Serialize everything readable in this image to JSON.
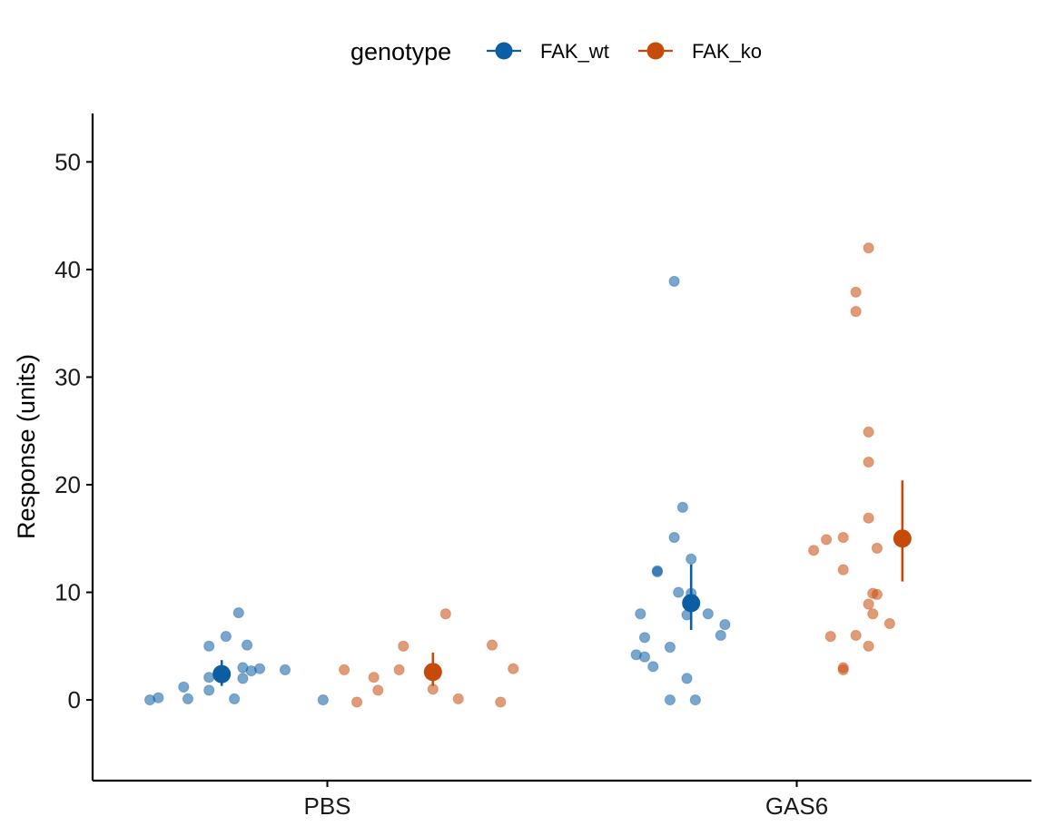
{
  "chart_data": {
    "type": "scatter",
    "title": "",
    "xlabel": "",
    "ylabel": "Response (units)",
    "ylim": [
      -7.5,
      54.5
    ],
    "yticks": [
      0,
      10,
      20,
      30,
      40,
      50
    ],
    "categories": [
      "PBS",
      "GAS6"
    ],
    "grid": false,
    "legend": {
      "title": "genotype",
      "placement": "top",
      "entries": [
        "FAK_wt",
        "FAK_ko"
      ]
    },
    "series": [
      {
        "name": "FAK_wt",
        "color": "#0B5DA4",
        "summary": [
          {
            "category": "PBS",
            "mean": 2.4,
            "lower": 1.3,
            "upper": 3.7
          },
          {
            "category": "GAS6",
            "mean": 9.0,
            "lower": 6.5,
            "upper": 12.6
          }
        ],
        "points": [
          {
            "category": "PBS",
            "jitter": -0.42,
            "y": 0.0
          },
          {
            "category": "PBS",
            "jitter": -0.4,
            "y": 0.2
          },
          {
            "category": "PBS",
            "jitter": -0.34,
            "y": 1.2
          },
          {
            "category": "PBS",
            "jitter": -0.33,
            "y": 0.1
          },
          {
            "category": "PBS",
            "jitter": -0.28,
            "y": 5.0
          },
          {
            "category": "PBS",
            "jitter": -0.28,
            "y": 2.1
          },
          {
            "category": "PBS",
            "jitter": -0.28,
            "y": 0.9
          },
          {
            "category": "PBS",
            "jitter": -0.24,
            "y": 5.9
          },
          {
            "category": "PBS",
            "jitter": -0.22,
            "y": 0.1
          },
          {
            "category": "PBS",
            "jitter": -0.21,
            "y": 8.1
          },
          {
            "category": "PBS",
            "jitter": -0.2,
            "y": 3.0
          },
          {
            "category": "PBS",
            "jitter": -0.19,
            "y": 5.1
          },
          {
            "category": "PBS",
            "jitter": -0.2,
            "y": 2.0
          },
          {
            "category": "PBS",
            "jitter": -0.18,
            "y": 2.7
          },
          {
            "category": "PBS",
            "jitter": -0.16,
            "y": 2.9
          },
          {
            "category": "PBS",
            "jitter": -0.1,
            "y": 2.8
          },
          {
            "category": "PBS",
            "jitter": -0.01,
            "y": 0.0
          },
          {
            "category": "GAS6",
            "jitter": -0.38,
            "y": 4.2
          },
          {
            "category": "GAS6",
            "jitter": -0.36,
            "y": 4.0
          },
          {
            "category": "GAS6",
            "jitter": -0.36,
            "y": 5.8
          },
          {
            "category": "GAS6",
            "jitter": -0.37,
            "y": 8.0
          },
          {
            "category": "GAS6",
            "jitter": -0.34,
            "y": 3.1
          },
          {
            "category": "GAS6",
            "jitter": -0.33,
            "y": 12.0
          },
          {
            "category": "GAS6",
            "jitter": -0.33,
            "y": 11.9
          },
          {
            "category": "GAS6",
            "jitter": -0.3,
            "y": 0.0
          },
          {
            "category": "GAS6",
            "jitter": -0.3,
            "y": 4.9
          },
          {
            "category": "GAS6",
            "jitter": -0.29,
            "y": 38.9
          },
          {
            "category": "GAS6",
            "jitter": -0.29,
            "y": 15.1
          },
          {
            "category": "GAS6",
            "jitter": -0.28,
            "y": 10.0
          },
          {
            "category": "GAS6",
            "jitter": -0.27,
            "y": 17.9
          },
          {
            "category": "GAS6",
            "jitter": -0.26,
            "y": 2.0
          },
          {
            "category": "GAS6",
            "jitter": -0.26,
            "y": 7.9
          },
          {
            "category": "GAS6",
            "jitter": -0.25,
            "y": 13.1
          },
          {
            "category": "GAS6",
            "jitter": -0.25,
            "y": 9.9
          },
          {
            "category": "GAS6",
            "jitter": -0.24,
            "y": 0.0
          },
          {
            "category": "GAS6",
            "jitter": -0.21,
            "y": 8.0
          },
          {
            "category": "GAS6",
            "jitter": -0.18,
            "y": 6.0
          },
          {
            "category": "GAS6",
            "jitter": -0.17,
            "y": 7.0
          }
        ]
      },
      {
        "name": "FAK_ko",
        "color": "#C64B0A",
        "summary": [
          {
            "category": "PBS",
            "mean": 2.6,
            "lower": 1.3,
            "upper": 4.4
          },
          {
            "category": "GAS6",
            "mean": 15.0,
            "lower": 11.0,
            "upper": 20.4
          }
        ],
        "points": [
          {
            "category": "PBS",
            "jitter": 0.04,
            "y": 2.8
          },
          {
            "category": "PBS",
            "jitter": 0.07,
            "y": -0.2
          },
          {
            "category": "PBS",
            "jitter": 0.11,
            "y": 2.1
          },
          {
            "category": "PBS",
            "jitter": 0.12,
            "y": 0.9
          },
          {
            "category": "PBS",
            "jitter": 0.17,
            "y": 2.8
          },
          {
            "category": "PBS",
            "jitter": 0.18,
            "y": 5.0
          },
          {
            "category": "PBS",
            "jitter": 0.25,
            "y": 1.0
          },
          {
            "category": "PBS",
            "jitter": 0.28,
            "y": 8.0
          },
          {
            "category": "PBS",
            "jitter": 0.31,
            "y": 0.1
          },
          {
            "category": "PBS",
            "jitter": 0.39,
            "y": 5.1
          },
          {
            "category": "PBS",
            "jitter": 0.41,
            "y": -0.2
          },
          {
            "category": "PBS",
            "jitter": 0.44,
            "y": 2.9
          },
          {
            "category": "GAS6",
            "jitter": 0.04,
            "y": 13.9
          },
          {
            "category": "GAS6",
            "jitter": 0.07,
            "y": 14.9
          },
          {
            "category": "GAS6",
            "jitter": 0.08,
            "y": 5.9
          },
          {
            "category": "GAS6",
            "jitter": 0.11,
            "y": 12.1
          },
          {
            "category": "GAS6",
            "jitter": 0.11,
            "y": 2.8
          },
          {
            "category": "GAS6",
            "jitter": 0.11,
            "y": 3.0
          },
          {
            "category": "GAS6",
            "jitter": 0.11,
            "y": 15.1
          },
          {
            "category": "GAS6",
            "jitter": 0.14,
            "y": 37.9
          },
          {
            "category": "GAS6",
            "jitter": 0.14,
            "y": 36.1
          },
          {
            "category": "GAS6",
            "jitter": 0.14,
            "y": 6.0
          },
          {
            "category": "GAS6",
            "jitter": 0.17,
            "y": 42.0
          },
          {
            "category": "GAS6",
            "jitter": 0.17,
            "y": 24.9
          },
          {
            "category": "GAS6",
            "jitter": 0.17,
            "y": 22.1
          },
          {
            "category": "GAS6",
            "jitter": 0.17,
            "y": 16.9
          },
          {
            "category": "GAS6",
            "jitter": 0.17,
            "y": 8.9
          },
          {
            "category": "GAS6",
            "jitter": 0.17,
            "y": 5.0
          },
          {
            "category": "GAS6",
            "jitter": 0.18,
            "y": 9.9
          },
          {
            "category": "GAS6",
            "jitter": 0.18,
            "y": 8.0
          },
          {
            "category": "GAS6",
            "jitter": 0.19,
            "y": 14.1
          },
          {
            "category": "GAS6",
            "jitter": 0.19,
            "y": 9.8
          },
          {
            "category": "GAS6",
            "jitter": 0.22,
            "y": 7.1
          },
          {
            "category": "GAS6",
            "jitter": 0.25,
            "y": 15.0
          }
        ]
      }
    ]
  }
}
